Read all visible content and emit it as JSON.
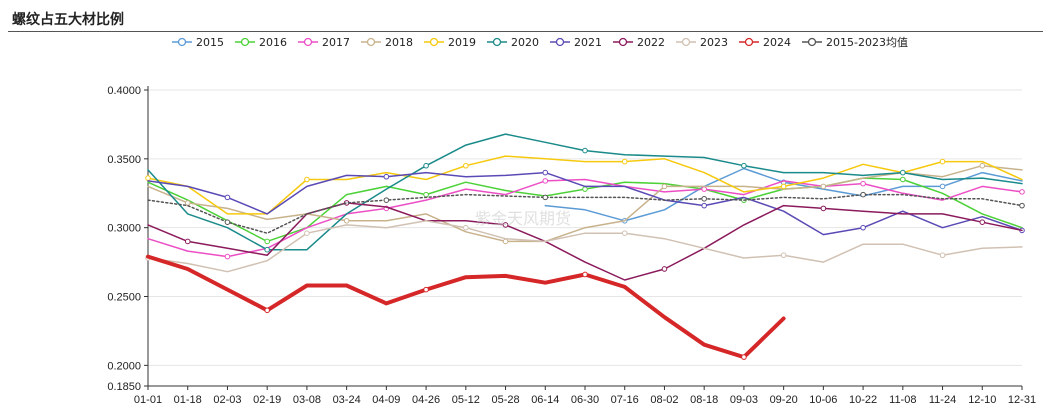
{
  "title": "螺纹占五大材比例",
  "watermark": "紫金天风期货",
  "chart_data": {
    "type": "line",
    "title": "螺纹占五大材比例",
    "xlabel": "",
    "ylabel": "",
    "ylim": [
      0.185,
      0.4
    ],
    "yticks": [
      "0.4000",
      "0.3500",
      "0.3000",
      "0.2500",
      "0.2000",
      "0.1850"
    ],
    "ytick_values": [
      0.4,
      0.35,
      0.3,
      0.25,
      0.2,
      0.185
    ],
    "grid": "horizontal",
    "legend_position": "top",
    "categories": [
      "01-01",
      "01-18",
      "02-03",
      "02-19",
      "03-08",
      "03-24",
      "04-09",
      "04-26",
      "05-12",
      "05-28",
      "06-14",
      "06-30",
      "07-16",
      "08-02",
      "08-18",
      "09-03",
      "09-20",
      "10-06",
      "10-22",
      "11-08",
      "11-24",
      "12-10",
      "12-31"
    ],
    "series": [
      {
        "name": "2015",
        "color": "#5b9bd5",
        "width": 1.5,
        "values": [
          null,
          null,
          null,
          null,
          null,
          null,
          null,
          null,
          null,
          null,
          0.316,
          0.313,
          0.305,
          0.313,
          0.33,
          0.343,
          0.333,
          0.328,
          0.323,
          0.33,
          0.33,
          0.34,
          0.334
        ]
      },
      {
        "name": "2016",
        "color": "#4cd137",
        "width": 1.5,
        "values": [
          0.333,
          0.32,
          0.305,
          0.29,
          0.3,
          0.324,
          0.33,
          0.324,
          0.333,
          0.327,
          0.323,
          0.328,
          0.333,
          0.332,
          0.328,
          0.32,
          0.328,
          0.33,
          0.336,
          0.335,
          0.325,
          0.31,
          0.3
        ]
      },
      {
        "name": "2017",
        "color": "#ec4fc5",
        "width": 1.5,
        "values": [
          0.292,
          0.283,
          0.279,
          0.285,
          0.3,
          0.31,
          0.314,
          0.32,
          0.328,
          0.324,
          0.334,
          0.335,
          0.33,
          0.326,
          0.328,
          0.324,
          0.334,
          0.33,
          0.332,
          0.325,
          0.32,
          0.33,
          0.326
        ]
      },
      {
        "name": "2018",
        "color": "#c8b28c",
        "width": 1.5,
        "values": [
          0.33,
          0.318,
          0.314,
          0.306,
          0.31,
          0.305,
          0.305,
          0.31,
          0.297,
          0.29,
          0.29,
          0.3,
          0.305,
          0.33,
          0.33,
          0.33,
          0.328,
          0.33,
          0.336,
          0.34,
          0.337,
          0.345,
          0.342
        ]
      },
      {
        "name": "2019",
        "color": "#f6c90e",
        "width": 1.5,
        "values": [
          0.336,
          0.33,
          0.31,
          0.31,
          0.335,
          0.335,
          0.34,
          0.335,
          0.345,
          0.352,
          0.35,
          0.348,
          0.348,
          0.35,
          0.34,
          0.326,
          0.33,
          0.336,
          0.346,
          0.34,
          0.348,
          0.348,
          0.335
        ]
      },
      {
        "name": "2020",
        "color": "#1a8a8a",
        "width": 1.5,
        "values": [
          0.342,
          0.31,
          0.3,
          0.284,
          0.284,
          0.31,
          0.328,
          0.345,
          0.36,
          0.368,
          0.362,
          0.356,
          0.353,
          0.352,
          0.351,
          0.345,
          0.34,
          0.34,
          0.338,
          0.34,
          0.335,
          0.336,
          0.332
        ]
      },
      {
        "name": "2021",
        "color": "#5a4ab5",
        "width": 1.5,
        "values": [
          0.334,
          0.33,
          0.322,
          0.31,
          0.33,
          0.338,
          0.337,
          0.34,
          0.337,
          0.338,
          0.34,
          0.33,
          0.33,
          0.32,
          0.316,
          0.322,
          0.312,
          0.295,
          0.3,
          0.312,
          0.3,
          0.308,
          0.298
        ]
      },
      {
        "name": "2022",
        "color": "#8b1a5c",
        "width": 1.5,
        "values": [
          0.302,
          0.29,
          0.285,
          0.28,
          0.31,
          0.318,
          0.315,
          0.305,
          0.305,
          0.302,
          0.29,
          0.275,
          0.262,
          0.27,
          0.285,
          0.302,
          0.316,
          0.314,
          0.312,
          0.31,
          0.31,
          0.304,
          0.298
        ]
      },
      {
        "name": "2023",
        "color": "#d1c1b3",
        "width": 1.5,
        "values": [
          0.278,
          0.274,
          0.268,
          0.276,
          0.296,
          0.302,
          0.3,
          0.305,
          0.3,
          0.292,
          0.29,
          0.296,
          0.296,
          0.292,
          0.285,
          0.278,
          0.28,
          0.275,
          0.288,
          0.288,
          0.28,
          0.285,
          0.286
        ]
      },
      {
        "name": "2024",
        "color": "#d62728",
        "width": 4,
        "values": [
          0.279,
          0.27,
          0.255,
          0.24,
          0.258,
          0.258,
          0.245,
          0.255,
          0.264,
          0.265,
          0.26,
          0.266,
          0.257,
          0.235,
          0.215,
          0.206,
          0.234,
          null,
          null,
          null,
          null,
          null,
          null
        ]
      },
      {
        "name": "2015-2023均值",
        "color": "#555555",
        "width": 1.5,
        "dashed": true,
        "values": [
          0.32,
          0.316,
          0.304,
          0.296,
          0.31,
          0.318,
          0.32,
          0.322,
          0.324,
          0.323,
          0.322,
          0.322,
          0.322,
          0.32,
          0.321,
          0.32,
          0.322,
          0.321,
          0.324,
          0.324,
          0.321,
          0.321,
          0.316
        ]
      }
    ]
  }
}
